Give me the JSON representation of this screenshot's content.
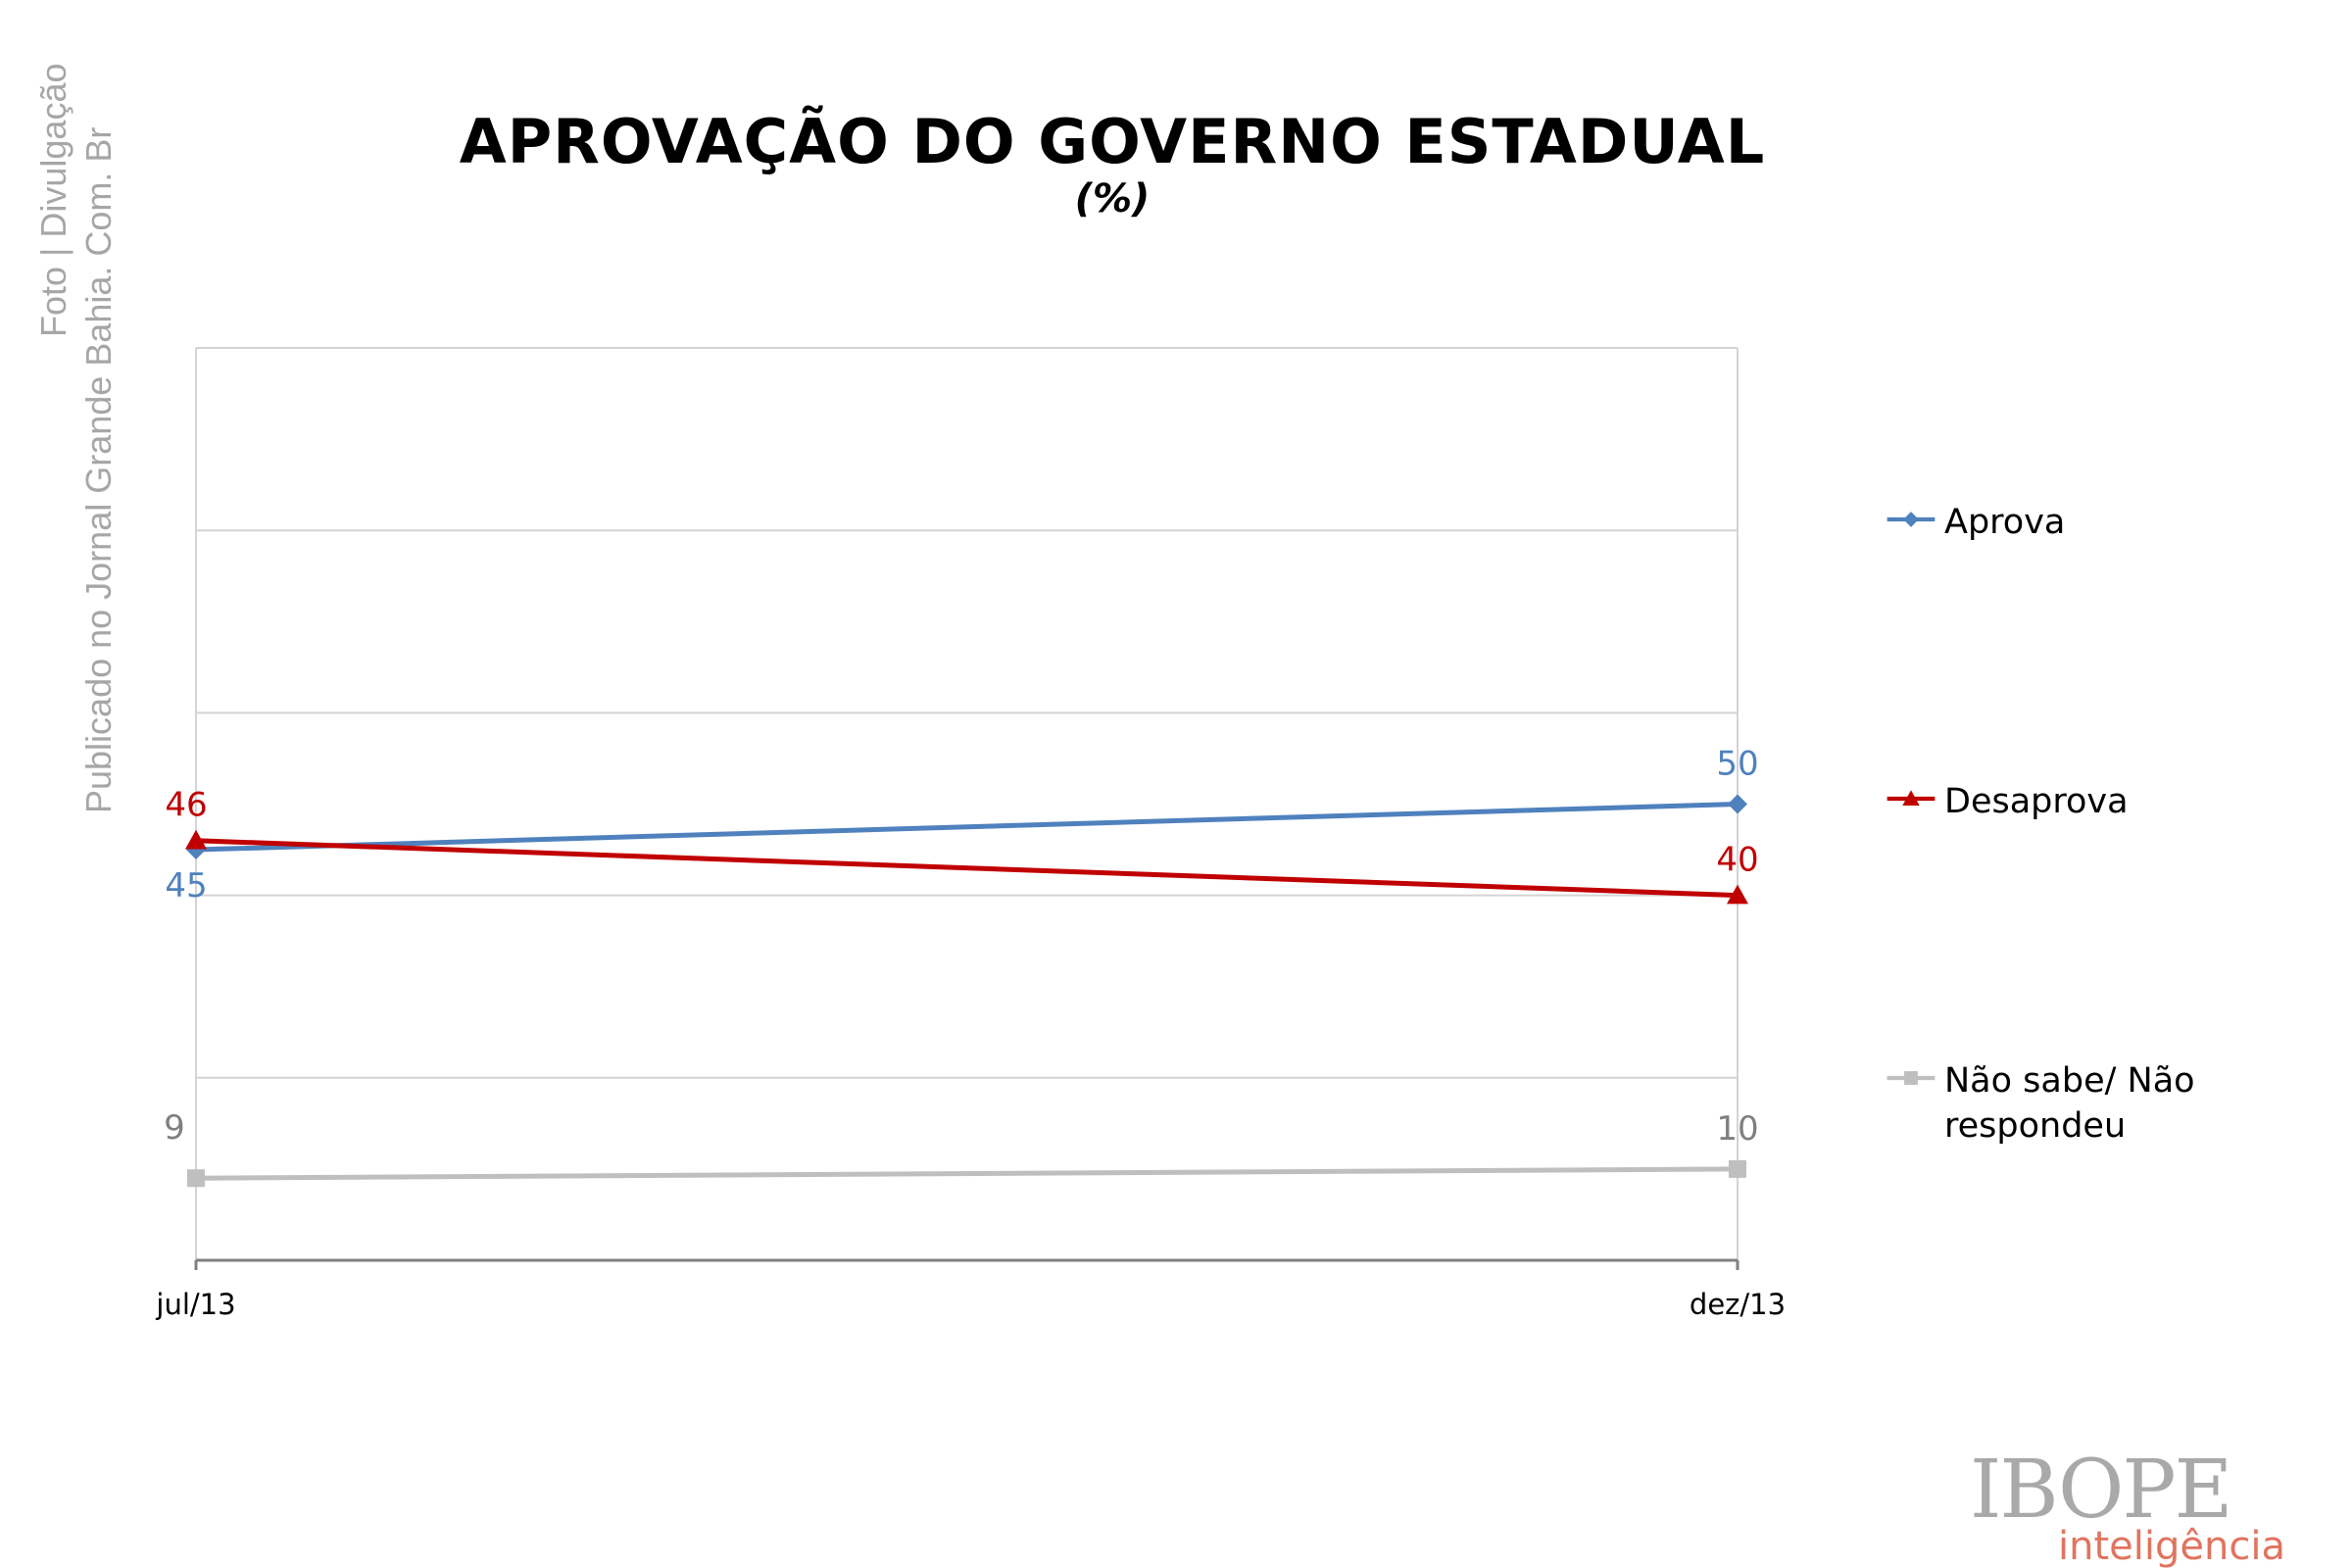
{
  "credit": {
    "line1": "Foto | Divulgação",
    "line2": "Publicado no Jornal Grande Bahia. Com. Br"
  },
  "logo": {
    "name": "IBOPE",
    "tagline": "inteligência"
  },
  "chart_data": {
    "type": "line",
    "title": "APROVAÇÃO DO GOVERNO ESTADUAL",
    "subtitle": "(%)",
    "xlabel": "",
    "ylabel": "",
    "categories": [
      "jul/13",
      "dez/13"
    ],
    "ylim": [
      0,
      100
    ],
    "grid": true,
    "legend_position": "right",
    "series": [
      {
        "name": "Aprova",
        "values": [
          45,
          50
        ],
        "labels": [
          "45",
          "50"
        ],
        "color": "#4f81bd",
        "marker": "diamond"
      },
      {
        "name": "Desaprova",
        "values": [
          46,
          40
        ],
        "labels": [
          "46",
          "40"
        ],
        "color": "#c00000",
        "marker": "triangle"
      },
      {
        "name": "Não sabe/ Não respondeu",
        "values": [
          9,
          10
        ],
        "labels": [
          "9",
          "10"
        ],
        "color": "#bfbfbf",
        "marker": "square"
      }
    ]
  }
}
